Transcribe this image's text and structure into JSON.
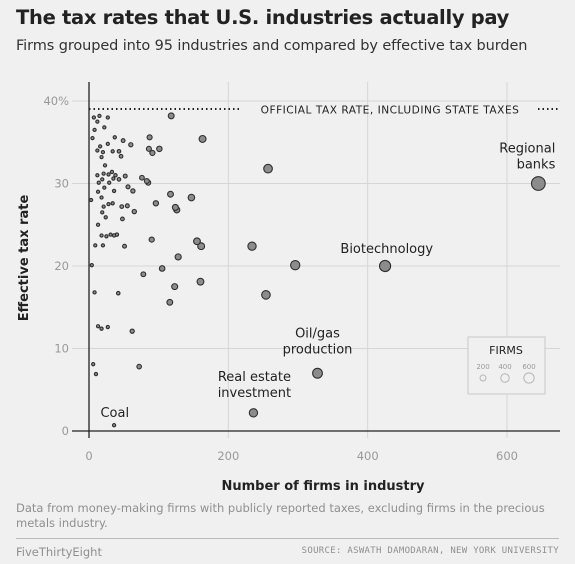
{
  "header": {
    "title": "The tax rates that U.S. industries actually pay",
    "subtitle": "Firms grouped into 95 industries and compared by effective tax burden"
  },
  "footer": {
    "note": "Data from money-making firms with publicly reported taxes, excluding firms in the precious metals industry.",
    "brand": "FiveThirtyEight",
    "source": "SOURCE: ASWATH DAMODARAN, NEW YORK UNIVERSITY"
  },
  "chart_data": {
    "type": "scatter",
    "xlabel": "Number of firms in industry",
    "ylabel": "Effective tax rate",
    "xlim": [
      -5,
      680
    ],
    "ylim": [
      -1.5,
      41
    ],
    "x_ticks": [
      0,
      200,
      400,
      600
    ],
    "y_ticks": [
      0,
      10,
      20,
      30,
      40
    ],
    "y_tick_labels": [
      "0",
      "10",
      "20",
      "30",
      "40%"
    ],
    "grid": true,
    "reference_line": {
      "y": 39,
      "label": "OFFICIAL TAX RATE, INCLUDING STATE TAXES"
    },
    "size_legend": {
      "title": "FIRMS",
      "values": [
        200,
        400,
        600
      ],
      "placement": "right"
    },
    "colors": {
      "point_fill": "#8c8c8c",
      "point_stroke": "#2f2f2f",
      "background": "#f0f0f0",
      "grid": "#d6d6d6"
    },
    "labeled_points": [
      {
        "label": "Regional banks",
        "x": 645,
        "y": 30
      },
      {
        "label": "Biotechnology",
        "x": 425,
        "y": 20
      },
      {
        "label": "Oil/gas production",
        "x": 328,
        "y": 7
      },
      {
        "label": "Real estate investment",
        "x": 236,
        "y": 2.2
      },
      {
        "label": "Coal",
        "x": 36,
        "y": 0.7
      }
    ],
    "points": [
      [
        3,
        28
      ],
      [
        4,
        20.1
      ],
      [
        5,
        35.5
      ],
      [
        6,
        8.1
      ],
      [
        7,
        38
      ],
      [
        8,
        36.5
      ],
      [
        8,
        16.8
      ],
      [
        9,
        22.5
      ],
      [
        10,
        6.9
      ],
      [
        12,
        37.5
      ],
      [
        12,
        34
      ],
      [
        12,
        31
      ],
      [
        13,
        29
      ],
      [
        13,
        25
      ],
      [
        13,
        12.7
      ],
      [
        14,
        30.1
      ],
      [
        15,
        38.2
      ],
      [
        16,
        34.5
      ],
      [
        18,
        33.2
      ],
      [
        18,
        28.3
      ],
      [
        18,
        23.7
      ],
      [
        18,
        12.4
      ],
      [
        19,
        30.5
      ],
      [
        19,
        26.5
      ],
      [
        20,
        33.8
      ],
      [
        20,
        22.5
      ],
      [
        21,
        31.2
      ],
      [
        21,
        27.2
      ],
      [
        22,
        36.8
      ],
      [
        22,
        29.5
      ],
      [
        23,
        32.2
      ],
      [
        24,
        25.9
      ],
      [
        25,
        23.6
      ],
      [
        27,
        38
      ],
      [
        27,
        34.8
      ],
      [
        27,
        12.6
      ],
      [
        28,
        31.1
      ],
      [
        28,
        27.5
      ],
      [
        29,
        30.1
      ],
      [
        31,
        23.8
      ],
      [
        33,
        31.4
      ],
      [
        34,
        33.9
      ],
      [
        34,
        27.6
      ],
      [
        35,
        30.6
      ],
      [
        36,
        29.1
      ],
      [
        36,
        23.7
      ],
      [
        37,
        35.6
      ],
      [
        38,
        31
      ],
      [
        40,
        23.8
      ],
      [
        42,
        16.7
      ],
      [
        43,
        33.9
      ],
      [
        43,
        30.5
      ],
      [
        46,
        33.3
      ],
      [
        47,
        27.2
      ],
      [
        48,
        25.7
      ],
      [
        49,
        35.2
      ],
      [
        51,
        22.4
      ],
      [
        52,
        30.9
      ],
      [
        55,
        27.3
      ],
      [
        56,
        29.6
      ],
      [
        60,
        34.7
      ],
      [
        62,
        12.1
      ],
      [
        63,
        29.1
      ],
      [
        65,
        26.6
      ],
      [
        72,
        7.8
      ],
      [
        76,
        30.7
      ],
      [
        78,
        19
      ],
      [
        83,
        30.3
      ],
      [
        85,
        30.1
      ],
      [
        86,
        34.2
      ],
      [
        87,
        35.6
      ],
      [
        90,
        23.2
      ],
      [
        91,
        33.7
      ],
      [
        96,
        27.6
      ],
      [
        101,
        34.2
      ],
      [
        105,
        19.7
      ],
      [
        116,
        15.6
      ],
      [
        117,
        28.7
      ],
      [
        118,
        38.2
      ],
      [
        123,
        17.5
      ],
      [
        124,
        27.1
      ],
      [
        126,
        26.8
      ],
      [
        128,
        21.1
      ],
      [
        147,
        28.3
      ],
      [
        155,
        23
      ],
      [
        160,
        18.1
      ],
      [
        161,
        22.4
      ],
      [
        163,
        35.4
      ],
      [
        234,
        22.4
      ],
      [
        254,
        16.5
      ],
      [
        257,
        31.8
      ],
      [
        296,
        20.1
      ],
      [
        645,
        30
      ],
      [
        425,
        20
      ],
      [
        328,
        7
      ],
      [
        236,
        2.2
      ],
      [
        36,
        0.7
      ]
    ]
  }
}
